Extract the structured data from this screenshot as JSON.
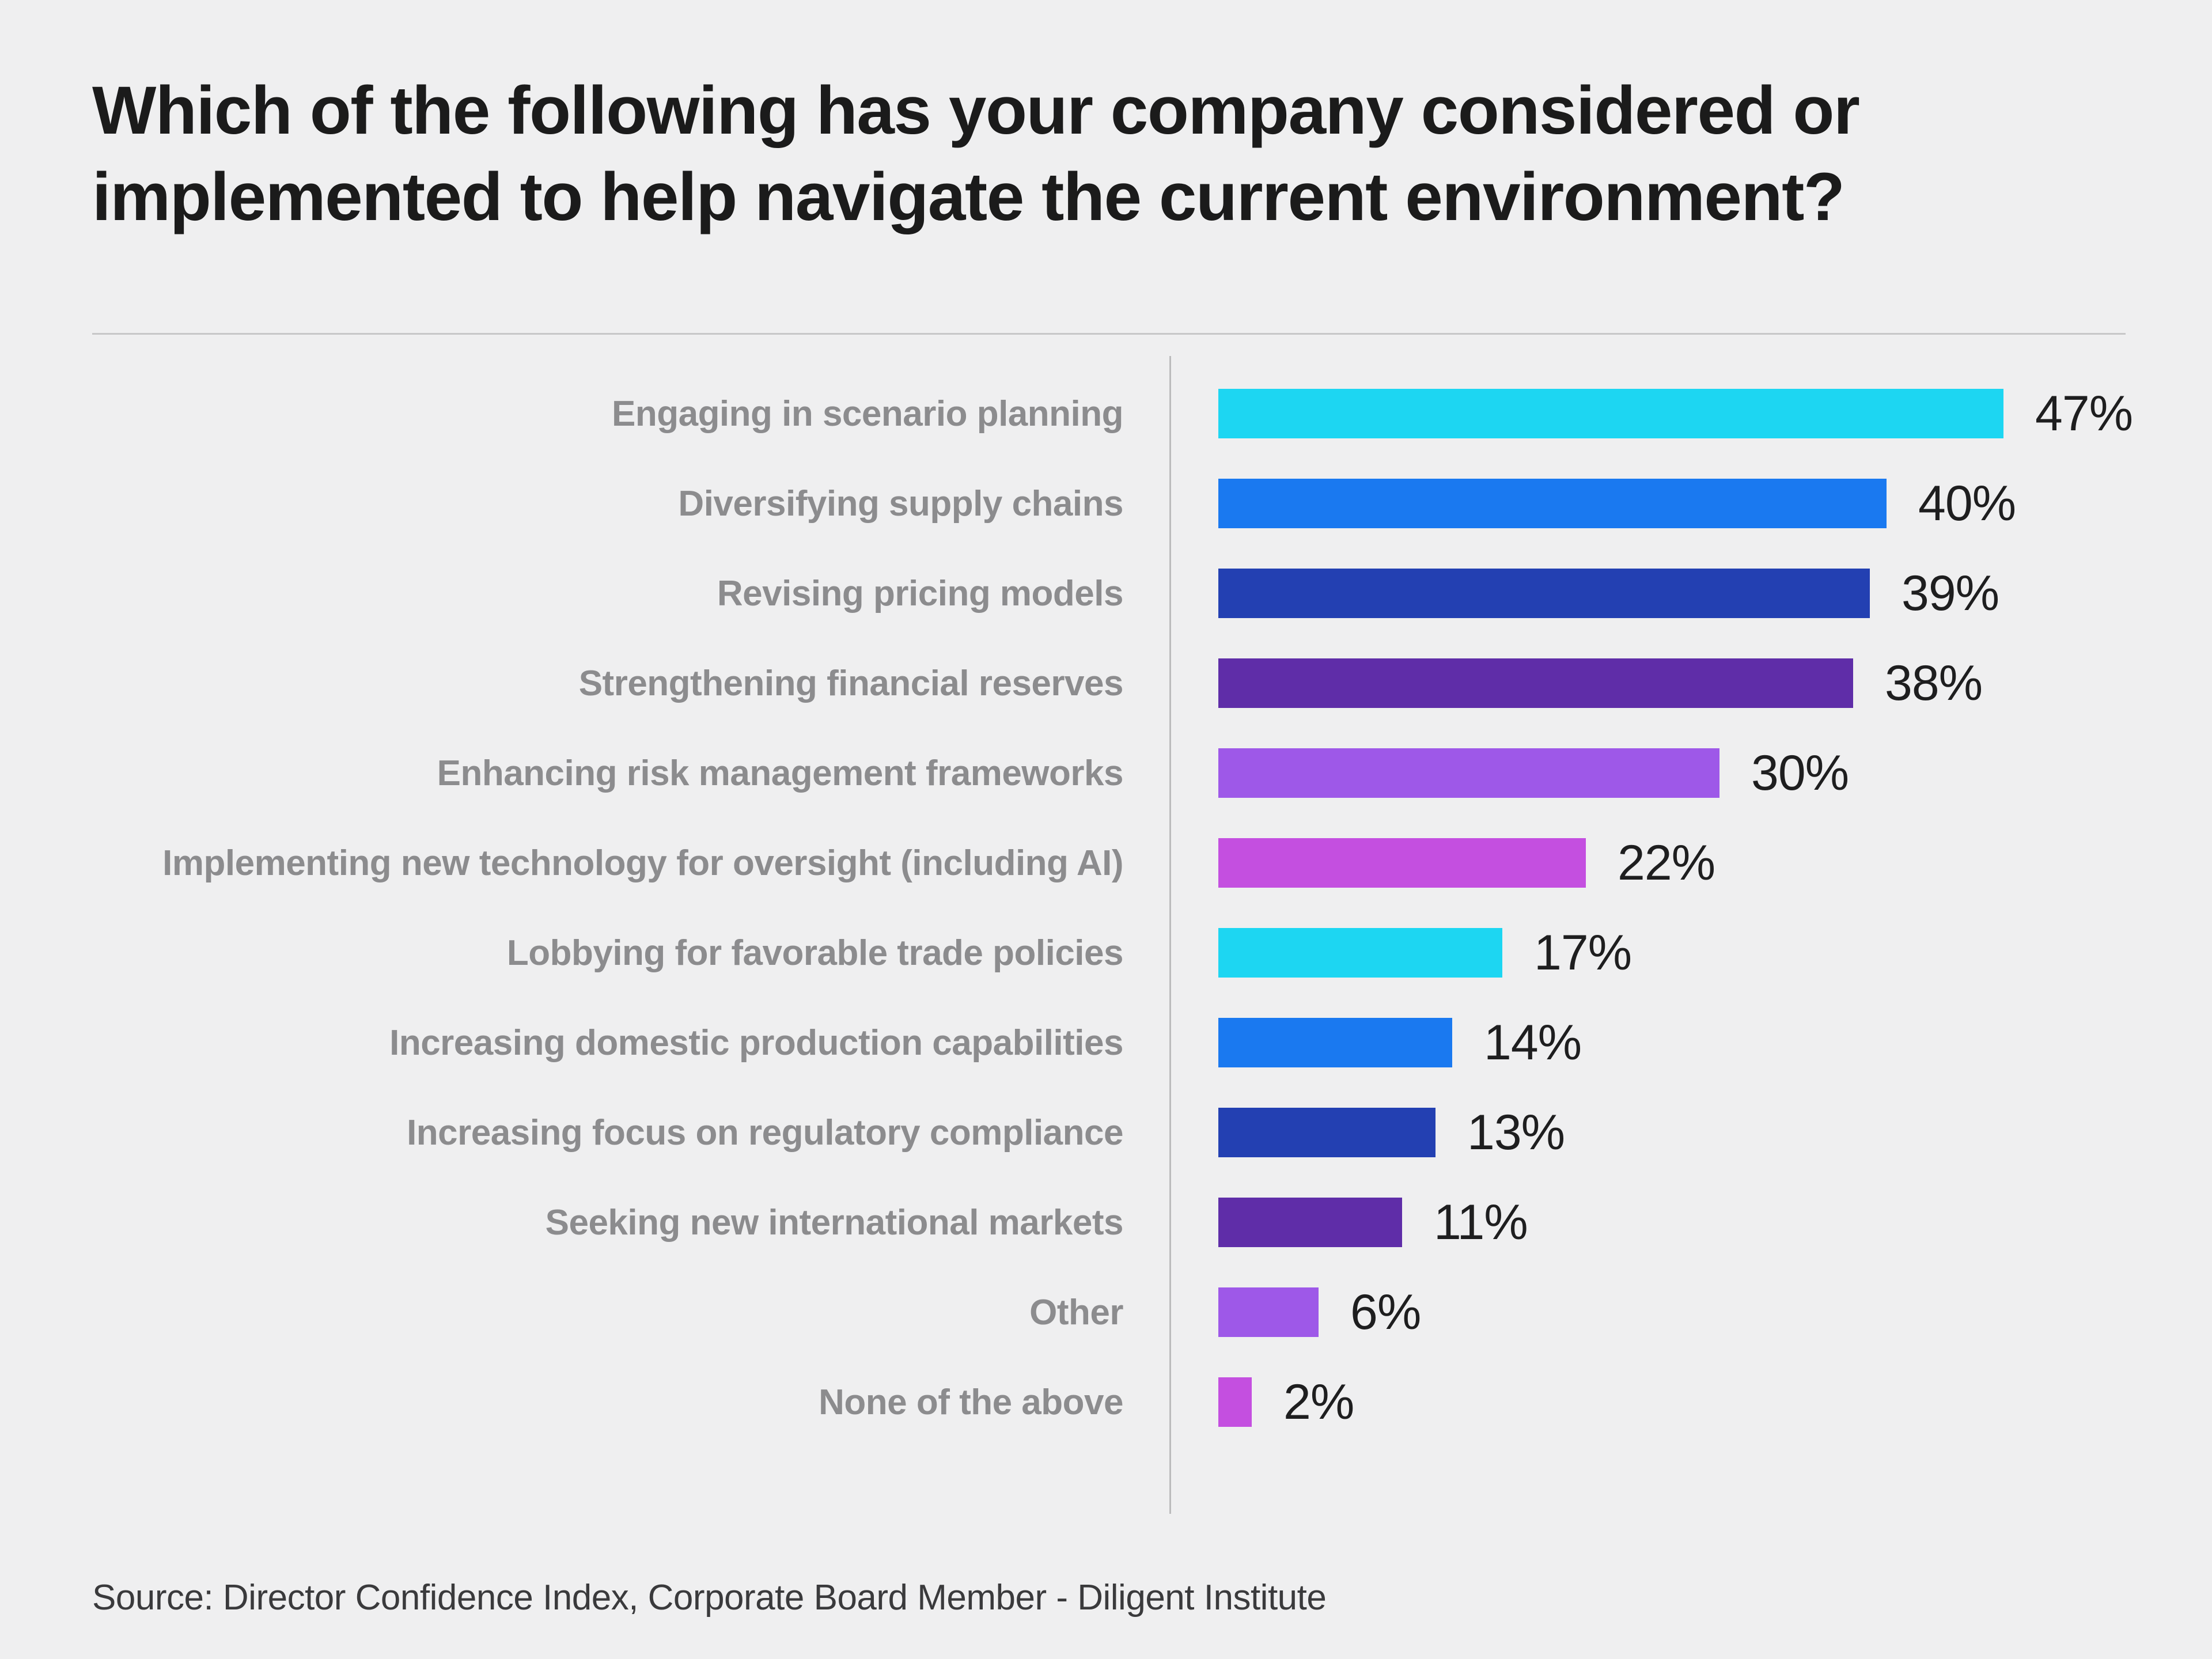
{
  "page": {
    "title": "Which of the following has your company considered or implemented to help navigate the current environment?",
    "source": "Source: Director Confidence Index, Corporate Board Member - Diligent Institute",
    "background_color": "#efeff0"
  },
  "chart_data": {
    "type": "bar",
    "orientation": "horizontal",
    "title": "Which of the following has your company considered or implemented to help navigate the current environment?",
    "categories": [
      "Engaging in scenario planning",
      "Diversifying supply chains",
      "Revising pricing models",
      "Strengthening financial reserves",
      "Enhancing risk management frameworks",
      "Implementing new technology for oversight (including AI)",
      "Lobbying for favorable trade policies",
      "Increasing domestic production capabilities",
      "Increasing focus on regulatory compliance",
      "Seeking new international markets",
      "Other",
      "None of the above"
    ],
    "values": [
      47,
      40,
      39,
      38,
      30,
      22,
      17,
      14,
      13,
      11,
      6,
      2
    ],
    "value_suffix": "%",
    "colors": [
      "#1dd6f2",
      "#1a79f0",
      "#2340b2",
      "#5f2da8",
      "#9e58e8",
      "#c44fe0",
      "#1dd6f2",
      "#1a79f0",
      "#2340b2",
      "#5f2da8",
      "#9e58e8",
      "#c44fe0"
    ],
    "xlim": [
      0,
      50
    ],
    "grid": false,
    "legend": false,
    "value_labels_position": "right-of-bar",
    "category_labels_position": "left-of-axis",
    "source": "Source: Director Confidence Index, Corporate Board Member - Diligent Institute"
  }
}
